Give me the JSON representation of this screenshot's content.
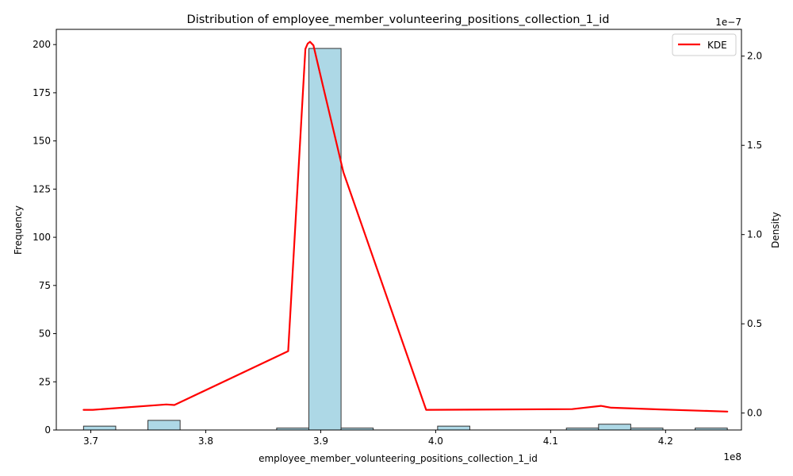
{
  "chart_data": {
    "type": "bar",
    "title": "Distribution of employee_member_volunteering_positions_collection_1_id",
    "xlabel": "employee_member_volunteering_positions_collection_1_id",
    "ylabel": "Frequency",
    "ylabel_right": "Density",
    "x_offset_label": "1e8",
    "y_right_offset_label": "1e−7",
    "xlim": [
      3.67,
      4.266
    ],
    "ylim": [
      0,
      207.9
    ],
    "ylim_right": [
      -0.095,
      2.15
    ],
    "x_ticks": [
      3.7,
      3.8,
      3.9,
      4.0,
      4.1,
      4.2
    ],
    "x_tick_labels": [
      "3.7",
      "3.8",
      "3.9",
      "4.0",
      "4.1",
      "4.2"
    ],
    "y_ticks": [
      0,
      25,
      50,
      75,
      100,
      125,
      150,
      175,
      200
    ],
    "y_tick_labels": [
      "0",
      "25",
      "50",
      "75",
      "100",
      "125",
      "150",
      "175",
      "200"
    ],
    "y_right_ticks": [
      0.0,
      0.5,
      1.0,
      1.5,
      2.0
    ],
    "y_right_tick_labels": [
      "0.0",
      "0.5",
      "1.0",
      "1.5",
      "2.0"
    ],
    "bins": [
      {
        "x0": 3.6937,
        "x1": 3.7217,
        "count": 2
      },
      {
        "x0": 3.7217,
        "x1": 3.7497,
        "count": 0
      },
      {
        "x0": 3.7497,
        "x1": 3.7777,
        "count": 5
      },
      {
        "x0": 3.7777,
        "x1": 3.8057,
        "count": 0
      },
      {
        "x0": 3.8057,
        "x1": 3.8337,
        "count": 0
      },
      {
        "x0": 3.8337,
        "x1": 3.8617,
        "count": 0
      },
      {
        "x0": 3.8617,
        "x1": 3.8897,
        "count": 1
      },
      {
        "x0": 3.8897,
        "x1": 3.9177,
        "count": 198
      },
      {
        "x0": 3.9177,
        "x1": 3.9457,
        "count": 1
      },
      {
        "x0": 3.9457,
        "x1": 3.9737,
        "count": 0
      },
      {
        "x0": 3.9737,
        "x1": 4.0017,
        "count": 0
      },
      {
        "x0": 4.0017,
        "x1": 4.0297,
        "count": 2
      },
      {
        "x0": 4.0297,
        "x1": 4.0577,
        "count": 0
      },
      {
        "x0": 4.0577,
        "x1": 4.0857,
        "count": 0
      },
      {
        "x0": 4.0857,
        "x1": 4.1137,
        "count": 0
      },
      {
        "x0": 4.1137,
        "x1": 4.1417,
        "count": 1
      },
      {
        "x0": 4.1417,
        "x1": 4.1697,
        "count": 3
      },
      {
        "x0": 4.1697,
        "x1": 4.1977,
        "count": 1
      },
      {
        "x0": 4.1977,
        "x1": 4.2257,
        "count": 0
      },
      {
        "x0": 4.2257,
        "x1": 4.2537,
        "count": 1
      }
    ],
    "bar_color": "#add8e6",
    "bar_edge_color": "#333333",
    "series": [
      {
        "name": "KDE",
        "color": "#ff0000",
        "x": [
          3.6937,
          3.7017,
          3.7657,
          3.7727,
          3.8717,
          3.8867,
          3.8887,
          3.8907,
          3.8937,
          3.9017,
          3.9197,
          3.9917,
          4.1187,
          4.1437,
          4.1527,
          4.1957,
          4.2537
        ],
        "y": [
          0.018,
          0.018,
          0.048,
          0.045,
          0.347,
          2.04,
          2.07,
          2.08,
          2.06,
          1.84,
          1.35,
          0.018,
          0.022,
          0.04,
          0.03,
          0.02,
          0.008
        ]
      }
    ],
    "legend": {
      "position": "top-right",
      "entries": [
        "KDE"
      ]
    },
    "grid": false
  }
}
